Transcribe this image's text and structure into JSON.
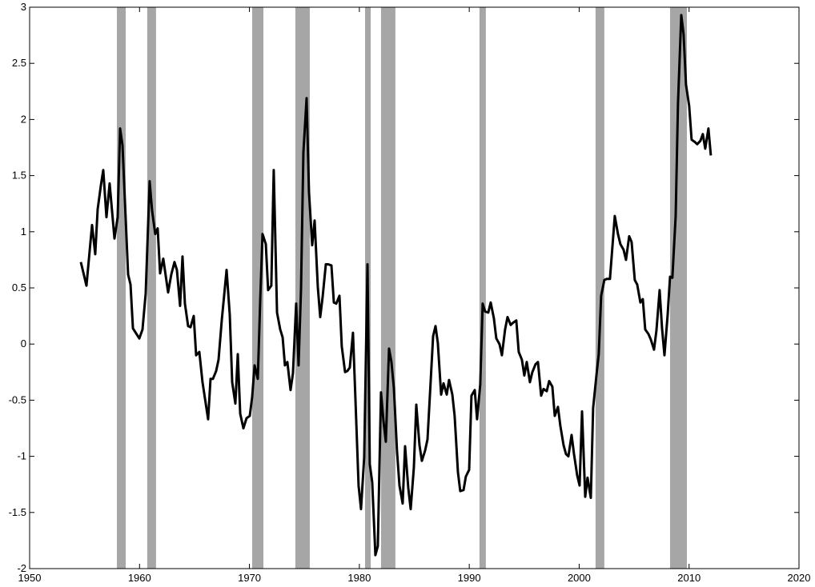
{
  "chart_data": {
    "type": "line",
    "x": [
      1954.66,
      1955.17,
      1955.68,
      1955.97,
      1956.19,
      1956.48,
      1956.7,
      1956.99,
      1957.28,
      1957.72,
      1958.01,
      1958.23,
      1958.45,
      1958.96,
      1959.18,
      1959.4,
      1959.98,
      1960.27,
      1960.56,
      1960.92,
      1961.14,
      1961.43,
      1961.65,
      1961.87,
      1962.16,
      1962.6,
      1962.89,
      1963.18,
      1963.4,
      1963.69,
      1963.91,
      1964.13,
      1964.42,
      1964.64,
      1964.93,
      1965.15,
      1965.44,
      1965.73,
      1966.24,
      1966.46,
      1966.68,
      1966.97,
      1967.19,
      1967.48,
      1967.92,
      1968.21,
      1968.43,
      1968.72,
      1968.94,
      1969.16,
      1969.45,
      1969.74,
      1970.03,
      1970.25,
      1970.47,
      1970.76,
      1970.98,
      1971.19,
      1971.49,
      1971.7,
      1971.99,
      1972.21,
      1972.51,
      1972.8,
      1973.02,
      1973.23,
      1973.45,
      1973.74,
      1973.96,
      1974.25,
      1974.47,
      1974.69,
      1974.91,
      1975.2,
      1975.42,
      1975.71,
      1975.93,
      1976.22,
      1976.44,
      1976.66,
      1976.95,
      1977.17,
      1977.46,
      1977.68,
      1977.9,
      1978.19,
      1978.4,
      1978.7,
      1978.91,
      1979.13,
      1979.42,
      1979.64,
      1979.93,
      1980.15,
      1980.44,
      1980.74,
      1980.95,
      1981.17,
      1981.46,
      1981.68,
      1981.97,
      1982.19,
      1982.41,
      1982.7,
      1982.92,
      1983.14,
      1983.43,
      1983.65,
      1983.94,
      1984.16,
      1984.45,
      1984.67,
      1984.96,
      1985.18,
      1985.47,
      1985.69,
      1985.98,
      1986.2,
      1986.49,
      1986.71,
      1986.93,
      1987.14,
      1987.44,
      1987.66,
      1987.95,
      1988.16,
      1988.46,
      1988.67,
      1988.97,
      1989.18,
      1989.48,
      1989.69,
      1989.99,
      1990.2,
      1990.5,
      1990.71,
      1991.0,
      1991.22,
      1991.44,
      1991.73,
      1991.95,
      1992.24,
      1992.46,
      1992.75,
      1992.97,
      1993.26,
      1993.48,
      1993.77,
      1993.99,
      1994.28,
      1994.5,
      1994.79,
      1995.01,
      1995.23,
      1995.52,
      1995.74,
      1996.03,
      1996.25,
      1996.54,
      1996.76,
      1997.05,
      1997.27,
      1997.56,
      1997.78,
      1998.07,
      1998.29,
      1998.58,
      1998.8,
      1999.02,
      1999.31,
      1999.53,
      1999.82,
      2000.04,
      2000.26,
      2000.55,
      2000.76,
      2001.06,
      2001.27,
      2001.57,
      2001.78,
      2002.0,
      2002.29,
      2002.51,
      2002.8,
      2003.02,
      2003.24,
      2003.53,
      2003.75,
      2004.04,
      2004.26,
      2004.55,
      2004.77,
      2005.06,
      2005.28,
      2005.57,
      2005.79,
      2006.01,
      2006.3,
      2006.52,
      2006.81,
      2007.03,
      2007.32,
      2007.54,
      2007.76,
      2008.05,
      2008.27,
      2008.48,
      2008.78,
      2008.99,
      2009.29,
      2009.5,
      2009.72,
      2010.01,
      2010.23,
      2010.52,
      2010.74,
      2011.03,
      2011.25,
      2011.47,
      2011.76,
      2011.98
    ],
    "values": [
      0.73,
      0.52,
      1.06,
      0.8,
      1.2,
      1.41,
      1.55,
      1.13,
      1.43,
      0.94,
      1.13,
      1.92,
      1.77,
      0.62,
      0.53,
      0.14,
      0.05,
      0.13,
      0.45,
      1.45,
      1.19,
      0.98,
      1.03,
      0.63,
      0.76,
      0.46,
      0.62,
      0.73,
      0.66,
      0.34,
      0.78,
      0.36,
      0.16,
      0.15,
      0.25,
      -0.1,
      -0.07,
      -0.34,
      -0.67,
      -0.31,
      -0.31,
      -0.24,
      -0.14,
      0.21,
      0.66,
      0.26,
      -0.34,
      -0.53,
      -0.09,
      -0.62,
      -0.75,
      -0.66,
      -0.64,
      -0.47,
      -0.19,
      -0.31,
      0.39,
      0.98,
      0.89,
      0.48,
      0.52,
      1.55,
      0.28,
      0.13,
      0.06,
      -0.19,
      -0.16,
      -0.41,
      -0.26,
      0.36,
      -0.19,
      0.48,
      1.71,
      2.19,
      1.35,
      0.88,
      1.1,
      0.51,
      0.24,
      0.42,
      0.71,
      0.71,
      0.7,
      0.37,
      0.36,
      0.43,
      -0.02,
      -0.25,
      -0.24,
      -0.21,
      0.1,
      -0.48,
      -1.26,
      -1.47,
      -1.01,
      0.71,
      -1.07,
      -1.23,
      -1.88,
      -1.8,
      -0.43,
      -0.68,
      -0.87,
      -0.04,
      -0.16,
      -0.39,
      -0.96,
      -1.26,
      -1.42,
      -0.91,
      -1.28,
      -1.47,
      -1.1,
      -0.54,
      -0.9,
      -1.04,
      -0.95,
      -0.85,
      -0.33,
      0.07,
      0.16,
      0.01,
      -0.45,
      -0.35,
      -0.45,
      -0.32,
      -0.45,
      -0.64,
      -1.14,
      -1.31,
      -1.3,
      -1.18,
      -1.12,
      -0.46,
      -0.41,
      -0.67,
      -0.36,
      0.36,
      0.29,
      0.28,
      0.37,
      0.23,
      0.05,
      0.0,
      -0.1,
      0.13,
      0.24,
      0.17,
      0.19,
      0.21,
      -0.07,
      -0.14,
      -0.28,
      -0.16,
      -0.34,
      -0.25,
      -0.18,
      -0.16,
      -0.46,
      -0.4,
      -0.42,
      -0.33,
      -0.38,
      -0.64,
      -0.56,
      -0.73,
      -0.9,
      -0.98,
      -1.0,
      -0.81,
      -0.98,
      -1.17,
      -1.26,
      -0.6,
      -1.36,
      -1.19,
      -1.37,
      -0.57,
      -0.28,
      -0.09,
      0.43,
      0.57,
      0.58,
      0.58,
      0.86,
      1.14,
      0.98,
      0.89,
      0.84,
      0.75,
      0.96,
      0.91,
      0.57,
      0.53,
      0.37,
      0.4,
      0.13,
      0.09,
      0.04,
      -0.05,
      0.12,
      0.48,
      0.14,
      -0.1,
      0.26,
      0.6,
      0.59,
      1.14,
      2.14,
      2.93,
      2.76,
      2.31,
      2.12,
      1.82,
      1.8,
      1.78,
      1.81,
      1.87,
      1.74,
      1.92,
      1.68
    ],
    "color": "#000000",
    "shaded_regions": [
      [
        1957.94,
        1958.74
      ],
      [
        1960.7,
        1961.5
      ],
      [
        1970.25,
        1971.27
      ],
      [
        1974.18,
        1975.49
      ],
      [
        1980.52,
        1981.03
      ],
      [
        1981.97,
        1983.28
      ],
      [
        1990.93,
        1991.51
      ],
      [
        2001.49,
        2002.29
      ],
      [
        2008.27,
        2009.8
      ]
    ],
    "shade_color": "#a6a6a6",
    "xlim": [
      1950,
      2020
    ],
    "xticks": [
      1950,
      1960,
      1970,
      1980,
      1990,
      2000,
      2010,
      2020
    ],
    "ylim": [
      -2,
      3
    ],
    "yticks": [
      -2,
      -1.5,
      -1,
      -0.5,
      0,
      0.5,
      1,
      1.5,
      2,
      2.5,
      3
    ],
    "grid": false
  }
}
